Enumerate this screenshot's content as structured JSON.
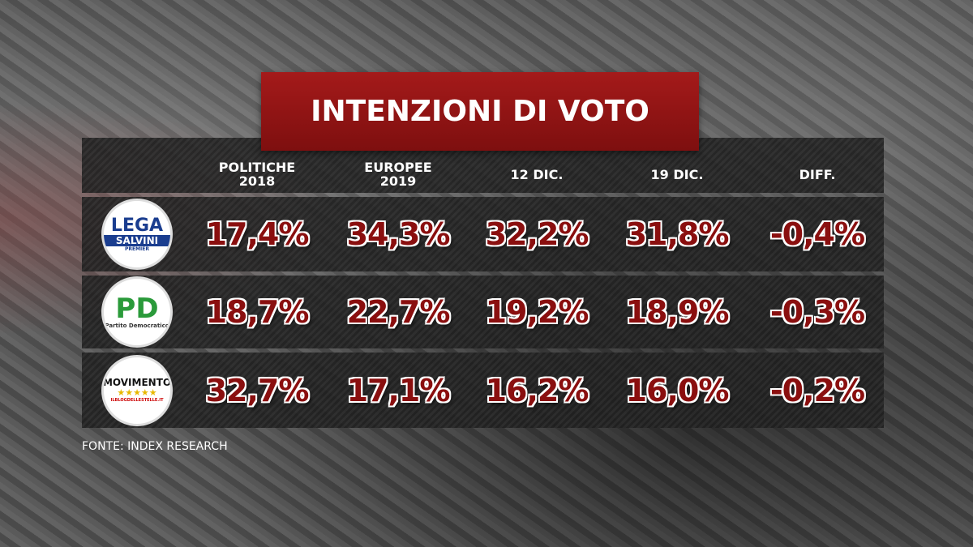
{
  "header": {
    "title": "INTENZIONI DI VOTO"
  },
  "table": {
    "columns": [
      "POLITICHE\n2018",
      "EUROPEE\n2019",
      "12 DIC.",
      "19 DIC.",
      "DIFF."
    ],
    "rows": [
      {
        "logo": {
          "top": "LEGA",
          "name": "SALVINI",
          "sub": "PREMIER"
        },
        "cells": [
          "17,4%",
          "34,3%",
          "32,2%",
          "31,8%",
          "-0,4%"
        ]
      },
      {
        "logo": {
          "top": "PD",
          "name": "Partito Democratico"
        },
        "cells": [
          "18,7%",
          "22,7%",
          "19,2%",
          "18,9%",
          "-0,3%"
        ]
      },
      {
        "logo": {
          "top": "MOVIMENTO",
          "name": "★★★★★",
          "sub": "ILBLOGDELLESTELLE.IT"
        },
        "cells": [
          "32,7%",
          "17,1%",
          "16,2%",
          "16,0%",
          "-0,2%"
        ]
      }
    ]
  },
  "footer": {
    "source": "FONTE: INDEX RESEARCH"
  }
}
